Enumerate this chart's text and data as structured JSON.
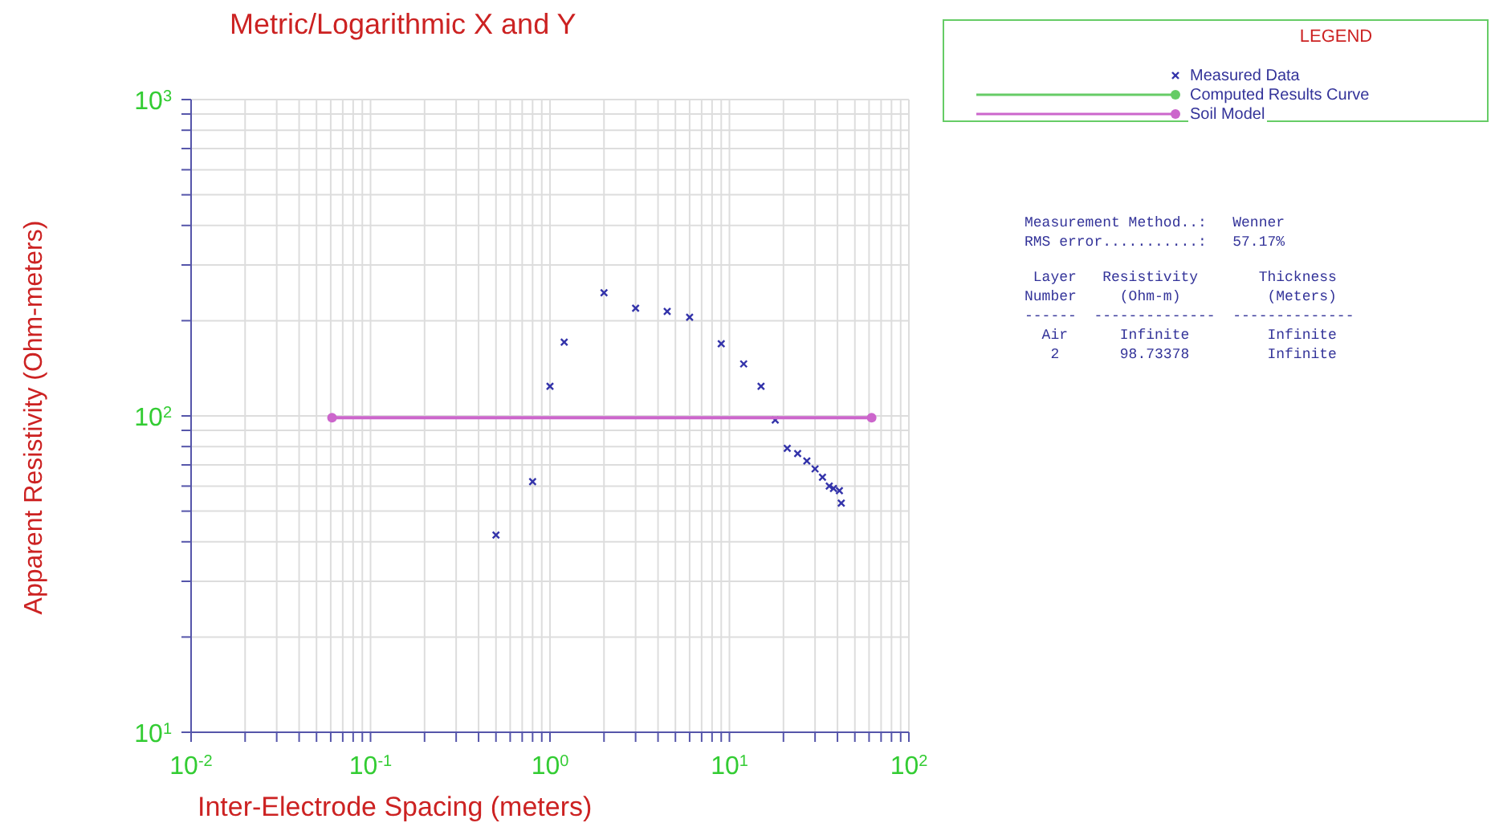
{
  "chart_data": {
    "type": "scatter",
    "title": "Metric/Logarithmic X and Y",
    "xlabel": "Inter-Electrode Spacing (meters)",
    "ylabel": "Apparent Resistivity (Ohm-meters)",
    "legend_title": "LEGEND",
    "legend": "top right",
    "grid": true,
    "log": "xy",
    "xlim": [
      0.01,
      100
    ],
    "ylim": [
      10,
      1000
    ],
    "xticks": [
      {
        "value": 0.01,
        "label": "10$^{-2}$"
      },
      {
        "value": 0.02,
        "label": null
      },
      {
        "value": 0.03,
        "label": null
      },
      {
        "value": 0.04,
        "label": null
      },
      {
        "value": 0.05,
        "label": null
      },
      {
        "value": 0.06,
        "label": null
      },
      {
        "value": 0.07,
        "label": null
      },
      {
        "value": 0.08,
        "label": null
      },
      {
        "value": 0.09,
        "label": null
      },
      {
        "value": 0.1,
        "label": "10$^{-1}$"
      },
      {
        "value": 0.2,
        "label": null
      },
      {
        "value": 0.3,
        "label": null
      },
      {
        "value": 0.4,
        "label": null
      },
      {
        "value": 0.5,
        "label": null
      },
      {
        "value": 0.6,
        "label": null
      },
      {
        "value": 0.7,
        "label": null
      },
      {
        "value": 0.8,
        "label": null
      },
      {
        "value": 0.9,
        "label": null
      },
      {
        "value": 1,
        "label": "10$^{0}$"
      },
      {
        "value": 2,
        "label": null
      },
      {
        "value": 3,
        "label": null
      },
      {
        "value": 4,
        "label": null
      },
      {
        "value": 5,
        "label": null
      },
      {
        "value": 6,
        "label": null
      },
      {
        "value": 7,
        "label": null
      },
      {
        "value": 8,
        "label": null
      },
      {
        "value": 9,
        "label": null
      },
      {
        "value": 10,
        "label": "10$^{1}$"
      },
      {
        "value": 20,
        "label": null
      },
      {
        "value": 30,
        "label": null
      },
      {
        "value": 40,
        "label": null
      },
      {
        "value": 50,
        "label": null
      },
      {
        "value": 60,
        "label": null
      },
      {
        "value": 70,
        "label": null
      },
      {
        "value": 80,
        "label": null
      },
      {
        "value": 90,
        "label": null
      },
      {
        "value": 100,
        "label": "10$^{2}$"
      }
    ],
    "yticks": [
      {
        "value": 10,
        "label": "10$^{1}$"
      },
      {
        "value": 20,
        "label": null
      },
      {
        "value": 30,
        "label": null
      },
      {
        "value": 40,
        "label": null
      },
      {
        "value": 50,
        "label": null
      },
      {
        "value": 60,
        "label": null
      },
      {
        "value": 70,
        "label": null
      },
      {
        "value": 80,
        "label": null
      },
      {
        "value": 90,
        "label": null
      },
      {
        "value": 100,
        "label": "10$^{2}$"
      },
      {
        "value": 200,
        "label": null
      },
      {
        "value": 300,
        "label": null
      },
      {
        "value": 400,
        "label": null
      },
      {
        "value": 500,
        "label": null
      },
      {
        "value": 600,
        "label": null
      },
      {
        "value": 700,
        "label": null
      },
      {
        "value": 800,
        "label": null
      },
      {
        "value": 900,
        "label": null
      },
      {
        "value": 1000,
        "label": "10$^{3}$"
      }
    ],
    "series": [
      {
        "name": "Measured Data",
        "marker": "cross",
        "color": "#3333aa",
        "x": [
          0.5,
          0.8,
          1,
          1.2,
          2,
          3,
          4.5,
          6,
          9,
          12,
          15,
          18,
          21,
          24,
          27,
          30,
          33,
          36,
          38,
          41,
          42
        ],
        "values": [
          42,
          62,
          124,
          171,
          245,
          219,
          214,
          205,
          169,
          146,
          124,
          97,
          79,
          76,
          72,
          68,
          64,
          60,
          59,
          58,
          53
        ]
      },
      {
        "name": "Computed Results Curve",
        "type": "line",
        "marker": "circle",
        "color": "#66cc66"
      },
      {
        "name": "Soil Model",
        "type": "line",
        "marker": "circle",
        "color": "#cc66cc",
        "x": [
          0.061,
          62
        ],
        "values": [
          98.73,
          98.73
        ]
      }
    ],
    "annotations": [
      "Measurement Method..:   Wenner",
      "RMS error...........:   57.17%",
      " Layer   Resistivity       Thickness",
      "Number     (Ohm-m)          (Meters)",
      "------  --------------  --------------",
      "  Air      Infinite         Infinite",
      "   2       98.73378         Infinite"
    ]
  }
}
